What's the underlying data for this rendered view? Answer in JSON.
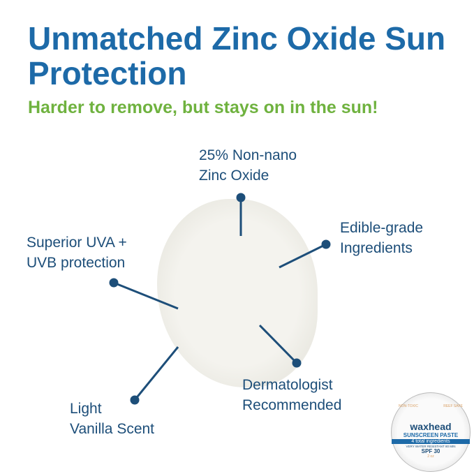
{
  "headline": "Unmatched Zinc Oxide Sun Protection",
  "subheadline": "Harder to remove, but stays on in the sun!",
  "callouts": [
    "25% Non-nano\nZinc Oxide",
    "Edible-grade\nIngredients",
    "Superior UVA +\nUVB protection",
    "Dermatologist\nRecommended",
    "Light\nVanilla Scent"
  ],
  "product": {
    "brand": "waxhead",
    "tag_left": "NON-TOXIC",
    "tag_right": "REEF SAFE",
    "name": "SUNSCREEN PASTE",
    "banner": "4 total ingredients",
    "claim": "VERY WATER RESISTANT 80 MIN",
    "spf": "SPF 30",
    "size": "2 oz"
  },
  "colors": {
    "headline": "#1d6aa8",
    "sub": "#6fb23f",
    "callout": "#1d4e79"
  }
}
